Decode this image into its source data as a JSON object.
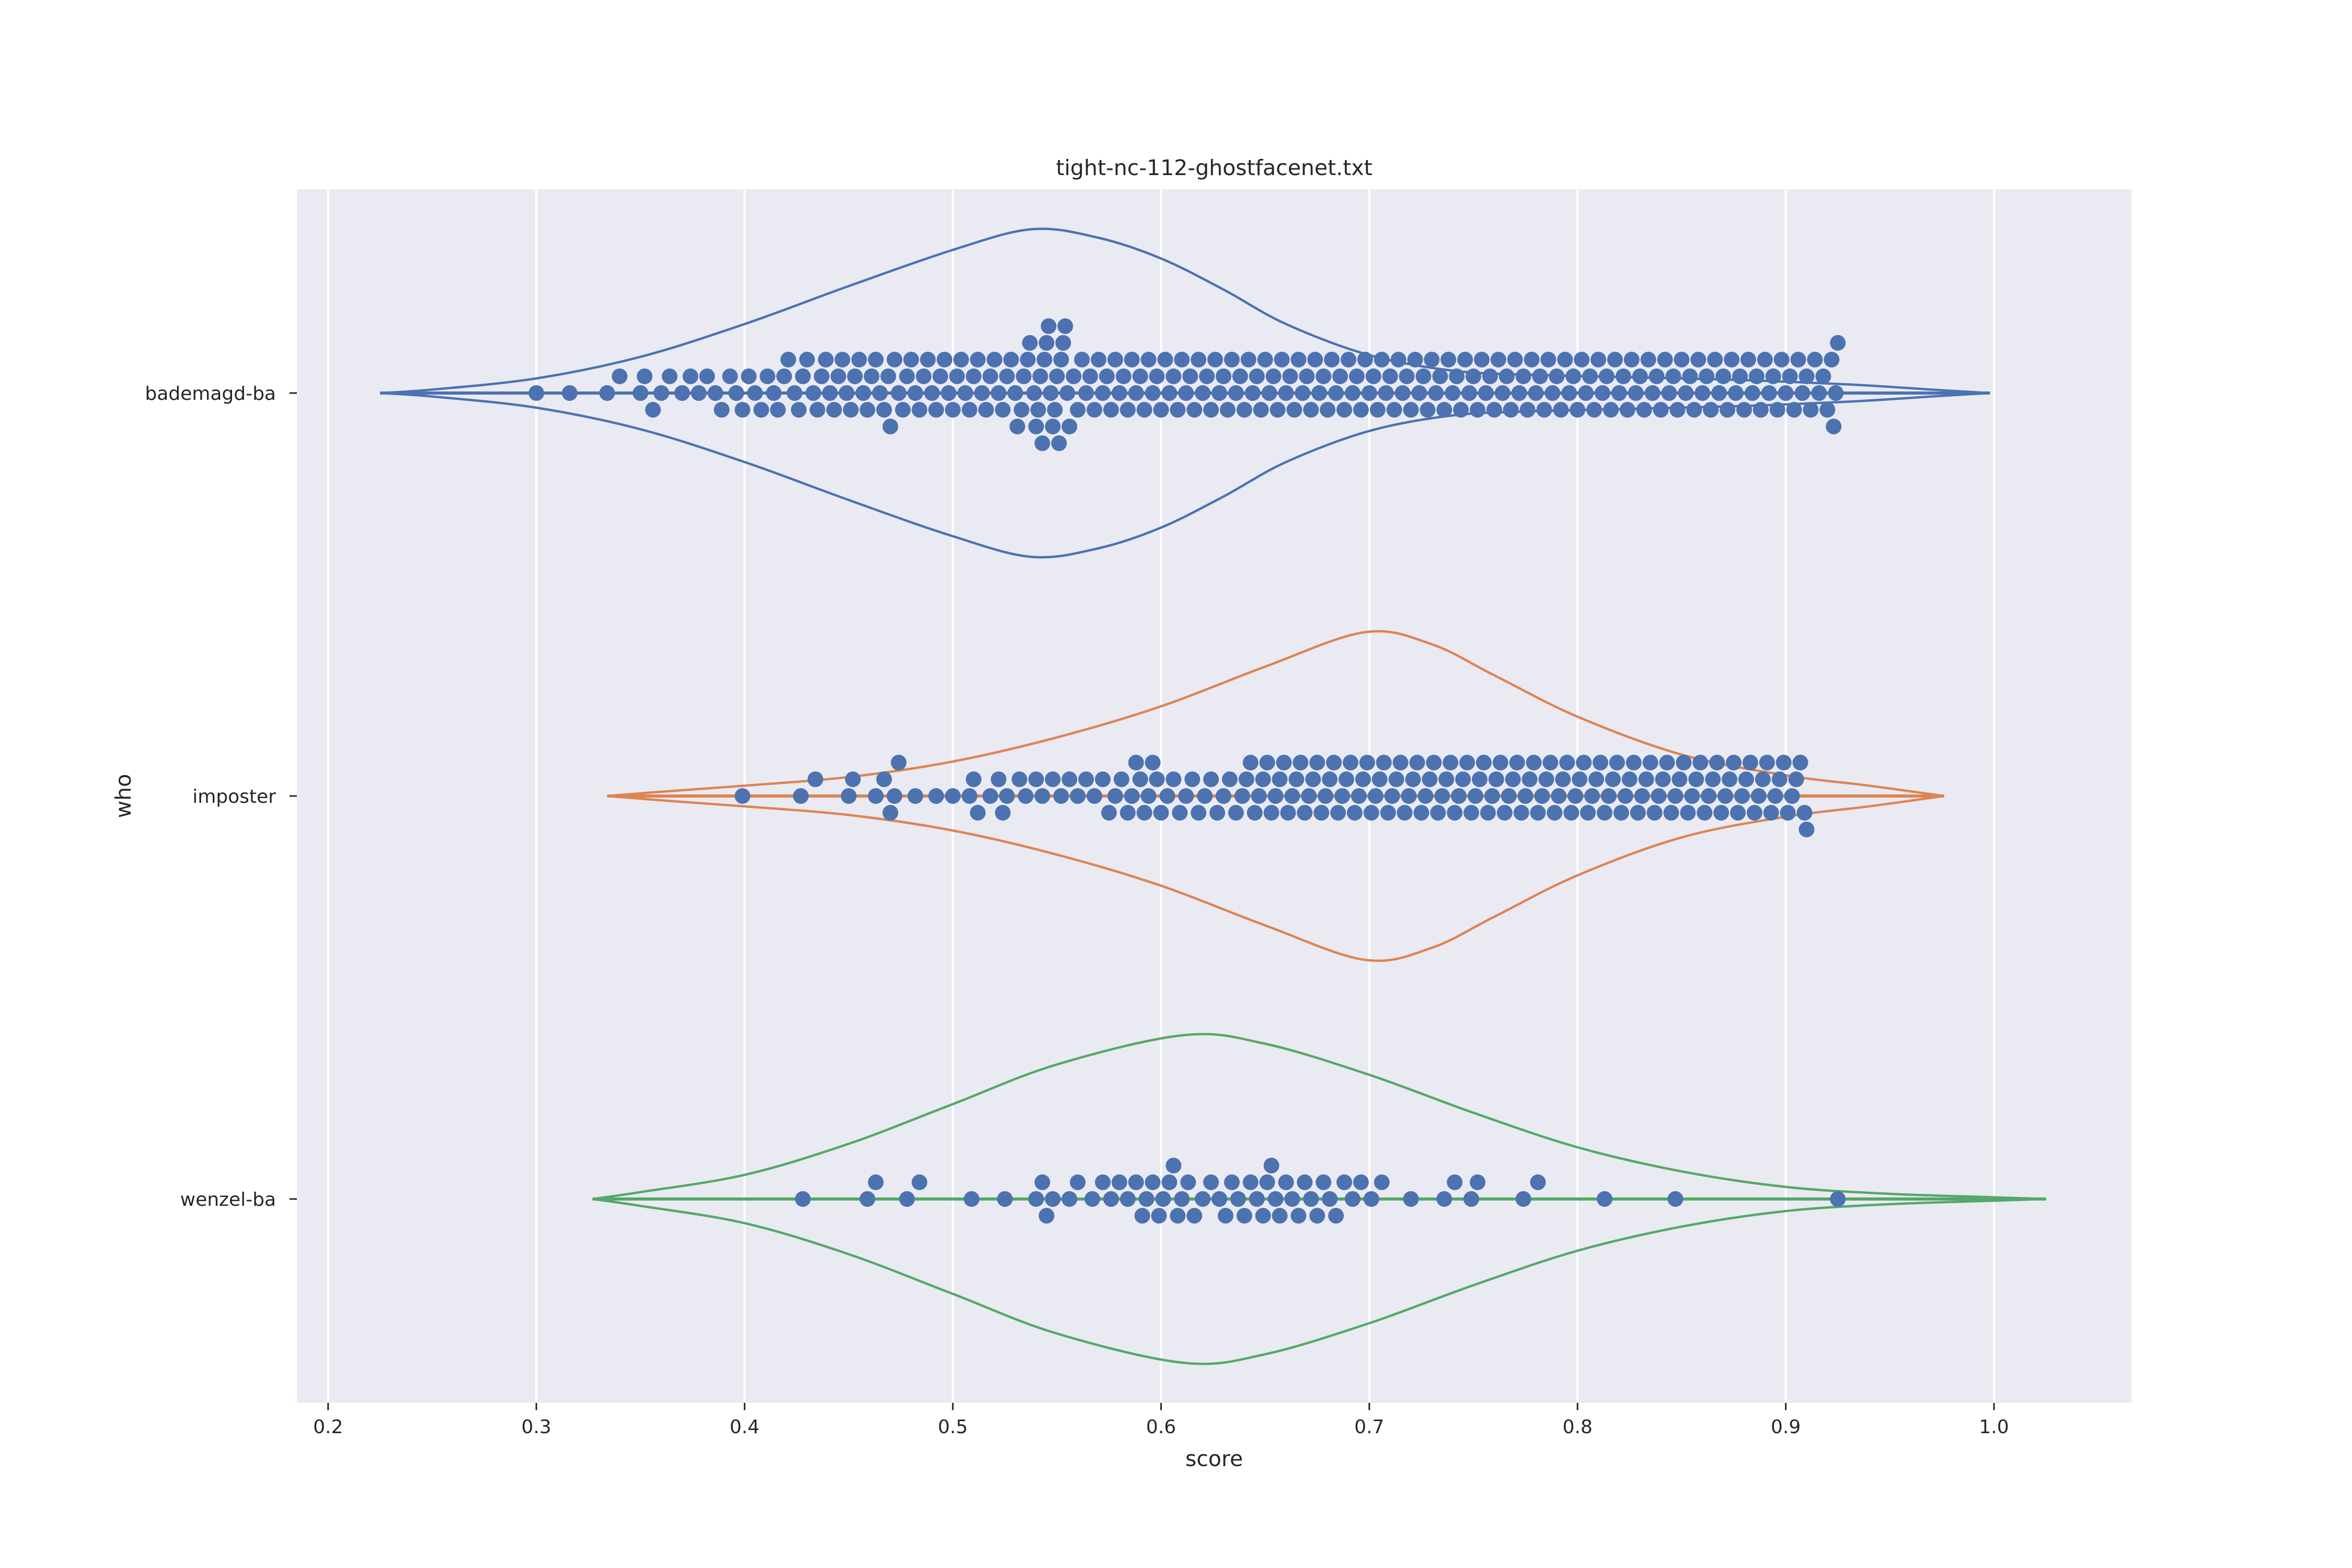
{
  "chart_data": {
    "type": "violin-swarm",
    "orientation": "horizontal",
    "title": "tight-nc-112-ghostfacenet.txt",
    "xlabel": "score",
    "ylabel": "who",
    "xlim": [
      0.185,
      1.066
    ],
    "xticks": [
      0.2,
      0.3,
      0.4,
      0.5,
      0.6,
      0.7,
      0.8,
      0.9,
      1.0
    ],
    "xtick_labels": [
      "0.2",
      "0.3",
      "0.4",
      "0.5",
      "0.6",
      "0.7",
      "0.8",
      "0.9",
      "1.0"
    ],
    "grid": true,
    "background_color": "#eaeaf2",
    "point_color": "#4c72b0",
    "categories": [
      "bademagd-ba",
      "imposter",
      "wenzel-ba"
    ],
    "series": [
      {
        "name": "bademagd-ba",
        "color": "#4c72b0",
        "violin": {
          "min": 0.225,
          "max": 0.998,
          "mode": 0.538,
          "profile": [
            [
              0.225,
              0.0
            ],
            [
              0.25,
              0.02
            ],
            [
              0.3,
              0.085
            ],
            [
              0.35,
              0.21
            ],
            [
              0.4,
              0.4
            ],
            [
              0.45,
              0.62
            ],
            [
              0.5,
              0.83
            ],
            [
              0.538,
              0.95
            ],
            [
              0.57,
              0.9
            ],
            [
              0.6,
              0.78
            ],
            [
              0.63,
              0.6
            ],
            [
              0.66,
              0.4
            ],
            [
              0.7,
              0.22
            ],
            [
              0.74,
              0.13
            ],
            [
              0.78,
              0.105
            ],
            [
              0.83,
              0.09
            ],
            [
              0.88,
              0.075
            ],
            [
              0.93,
              0.05
            ],
            [
              0.97,
              0.02
            ],
            [
              0.998,
              0.0
            ]
          ]
        },
        "points": [
          0.3,
          0.316,
          0.334,
          0.34,
          0.35,
          0.352,
          0.356,
          0.36,
          0.364,
          0.37,
          0.374,
          0.378,
          0.382,
          0.386,
          0.389,
          0.393,
          0.396,
          0.399,
          0.402,
          0.405,
          0.408,
          0.411,
          0.414,
          0.416,
          0.419,
          0.421,
          0.424,
          0.426,
          0.428,
          0.43,
          0.433,
          0.435,
          0.437,
          0.439,
          0.441,
          0.443,
          0.445,
          0.447,
          0.449,
          0.451,
          0.453,
          0.455,
          0.457,
          0.459,
          0.461,
          0.463,
          0.465,
          0.467,
          0.469,
          0.47,
          0.472,
          0.474,
          0.476,
          0.478,
          0.48,
          0.482,
          0.484,
          0.486,
          0.488,
          0.49,
          0.492,
          0.494,
          0.496,
          0.498,
          0.5,
          0.502,
          0.504,
          0.506,
          0.508,
          0.51,
          0.512,
          0.514,
          0.516,
          0.518,
          0.52,
          0.522,
          0.524,
          0.526,
          0.528,
          0.53,
          0.531,
          0.533,
          0.534,
          0.536,
          0.537,
          0.539,
          0.54,
          0.541,
          0.542,
          0.543,
          0.544,
          0.545,
          0.546,
          0.547,
          0.548,
          0.549,
          0.55,
          0.551,
          0.552,
          0.553,
          0.554,
          0.555,
          0.556,
          0.558,
          0.56,
          0.562,
          0.564,
          0.566,
          0.568,
          0.57,
          0.572,
          0.574,
          0.576,
          0.578,
          0.58,
          0.582,
          0.584,
          0.586,
          0.588,
          0.59,
          0.592,
          0.594,
          0.596,
          0.598,
          0.6,
          0.602,
          0.604,
          0.606,
          0.608,
          0.61,
          0.612,
          0.614,
          0.616,
          0.618,
          0.62,
          0.622,
          0.624,
          0.626,
          0.628,
          0.63,
          0.632,
          0.634,
          0.636,
          0.638,
          0.64,
          0.642,
          0.644,
          0.646,
          0.648,
          0.65,
          0.652,
          0.654,
          0.656,
          0.658,
          0.66,
          0.662,
          0.664,
          0.666,
          0.668,
          0.67,
          0.672,
          0.674,
          0.676,
          0.678,
          0.68,
          0.682,
          0.684,
          0.686,
          0.688,
          0.69,
          0.692,
          0.694,
          0.696,
          0.698,
          0.7,
          0.702,
          0.704,
          0.706,
          0.708,
          0.71,
          0.712,
          0.714,
          0.716,
          0.718,
          0.72,
          0.722,
          0.724,
          0.726,
          0.728,
          0.73,
          0.732,
          0.734,
          0.736,
          0.738,
          0.74,
          0.742,
          0.744,
          0.746,
          0.748,
          0.75,
          0.752,
          0.754,
          0.756,
          0.758,
          0.76,
          0.762,
          0.764,
          0.766,
          0.768,
          0.77,
          0.772,
          0.774,
          0.776,
          0.778,
          0.78,
          0.782,
          0.784,
          0.786,
          0.788,
          0.79,
          0.792,
          0.794,
          0.796,
          0.798,
          0.8,
          0.802,
          0.804,
          0.806,
          0.808,
          0.81,
          0.812,
          0.814,
          0.816,
          0.818,
          0.82,
          0.822,
          0.824,
          0.826,
          0.828,
          0.83,
          0.832,
          0.834,
          0.836,
          0.838,
          0.84,
          0.842,
          0.844,
          0.846,
          0.848,
          0.85,
          0.852,
          0.854,
          0.856,
          0.858,
          0.86,
          0.862,
          0.864,
          0.866,
          0.868,
          0.87,
          0.872,
          0.874,
          0.876,
          0.878,
          0.88,
          0.882,
          0.884,
          0.886,
          0.888,
          0.89,
          0.892,
          0.894,
          0.896,
          0.898,
          0.9,
          0.902,
          0.904,
          0.906,
          0.908,
          0.91,
          0.912,
          0.914,
          0.916,
          0.918,
          0.92,
          0.922,
          0.923,
          0.924,
          0.925
        ]
      },
      {
        "name": "imposter",
        "color": "#dd8452",
        "violin": {
          "min": 0.334,
          "max": 0.976,
          "mode": 0.698,
          "profile": [
            [
              0.334,
              0.0
            ],
            [
              0.36,
              0.025
            ],
            [
              0.4,
              0.06
            ],
            [
              0.45,
              0.11
            ],
            [
              0.5,
              0.2
            ],
            [
              0.55,
              0.34
            ],
            [
              0.6,
              0.52
            ],
            [
              0.65,
              0.75
            ],
            [
              0.698,
              0.95
            ],
            [
              0.73,
              0.88
            ],
            [
              0.76,
              0.7
            ],
            [
              0.8,
              0.46
            ],
            [
              0.85,
              0.24
            ],
            [
              0.9,
              0.12
            ],
            [
              0.94,
              0.06
            ],
            [
              0.976,
              0.0
            ]
          ]
        },
        "points": [
          0.399,
          0.427,
          0.434,
          0.45,
          0.452,
          0.463,
          0.467,
          0.47,
          0.472,
          0.474,
          0.482,
          0.492,
          0.5,
          0.508,
          0.51,
          0.512,
          0.518,
          0.522,
          0.524,
          0.526,
          0.532,
          0.535,
          0.54,
          0.543,
          0.548,
          0.552,
          0.556,
          0.56,
          0.564,
          0.568,
          0.572,
          0.575,
          0.578,
          0.581,
          0.584,
          0.586,
          0.588,
          0.59,
          0.592,
          0.594,
          0.596,
          0.598,
          0.6,
          0.603,
          0.606,
          0.609,
          0.612,
          0.615,
          0.618,
          0.621,
          0.624,
          0.627,
          0.63,
          0.633,
          0.636,
          0.639,
          0.641,
          0.643,
          0.645,
          0.647,
          0.649,
          0.651,
          0.653,
          0.655,
          0.657,
          0.659,
          0.661,
          0.663,
          0.665,
          0.667,
          0.669,
          0.671,
          0.673,
          0.675,
          0.677,
          0.679,
          0.681,
          0.683,
          0.685,
          0.687,
          0.689,
          0.691,
          0.693,
          0.695,
          0.697,
          0.699,
          0.701,
          0.703,
          0.705,
          0.707,
          0.709,
          0.711,
          0.713,
          0.715,
          0.717,
          0.719,
          0.721,
          0.723,
          0.725,
          0.727,
          0.729,
          0.731,
          0.733,
          0.735,
          0.737,
          0.739,
          0.741,
          0.743,
          0.745,
          0.747,
          0.749,
          0.751,
          0.753,
          0.755,
          0.757,
          0.759,
          0.761,
          0.763,
          0.765,
          0.767,
          0.769,
          0.771,
          0.773,
          0.775,
          0.777,
          0.779,
          0.781,
          0.783,
          0.785,
          0.787,
          0.789,
          0.791,
          0.793,
          0.795,
          0.797,
          0.799,
          0.801,
          0.803,
          0.805,
          0.807,
          0.809,
          0.811,
          0.813,
          0.815,
          0.817,
          0.819,
          0.821,
          0.823,
          0.825,
          0.827,
          0.829,
          0.831,
          0.833,
          0.835,
          0.837,
          0.839,
          0.841,
          0.843,
          0.845,
          0.847,
          0.849,
          0.851,
          0.853,
          0.855,
          0.857,
          0.859,
          0.861,
          0.863,
          0.865,
          0.867,
          0.869,
          0.871,
          0.873,
          0.875,
          0.877,
          0.879,
          0.881,
          0.883,
          0.885,
          0.887,
          0.889,
          0.891,
          0.893,
          0.895,
          0.897,
          0.899,
          0.901,
          0.903,
          0.905,
          0.907,
          0.909,
          0.91
        ]
      },
      {
        "name": "wenzel-ba",
        "color": "#55a868",
        "violin": {
          "min": 0.327,
          "max": 1.025,
          "mode": 0.611,
          "profile": [
            [
              0.327,
              0.0
            ],
            [
              0.35,
              0.04
            ],
            [
              0.4,
              0.14
            ],
            [
              0.45,
              0.32
            ],
            [
              0.5,
              0.55
            ],
            [
              0.55,
              0.78
            ],
            [
              0.611,
              0.95
            ],
            [
              0.65,
              0.9
            ],
            [
              0.7,
              0.72
            ],
            [
              0.75,
              0.5
            ],
            [
              0.8,
              0.3
            ],
            [
              0.85,
              0.16
            ],
            [
              0.9,
              0.07
            ],
            [
              0.95,
              0.03
            ],
            [
              1.0,
              0.01
            ],
            [
              1.025,
              0.0
            ]
          ]
        },
        "points": [
          0.428,
          0.459,
          0.463,
          0.478,
          0.484,
          0.509,
          0.525,
          0.54,
          0.543,
          0.545,
          0.548,
          0.556,
          0.56,
          0.567,
          0.572,
          0.576,
          0.58,
          0.584,
          0.588,
          0.591,
          0.593,
          0.596,
          0.599,
          0.601,
          0.604,
          0.606,
          0.608,
          0.61,
          0.613,
          0.616,
          0.62,
          0.624,
          0.628,
          0.631,
          0.634,
          0.637,
          0.64,
          0.643,
          0.646,
          0.649,
          0.651,
          0.653,
          0.655,
          0.657,
          0.66,
          0.663,
          0.666,
          0.669,
          0.672,
          0.675,
          0.678,
          0.681,
          0.684,
          0.688,
          0.692,
          0.696,
          0.701,
          0.706,
          0.72,
          0.736,
          0.741,
          0.749,
          0.752,
          0.774,
          0.781,
          0.813,
          0.847,
          0.925
        ]
      }
    ]
  }
}
